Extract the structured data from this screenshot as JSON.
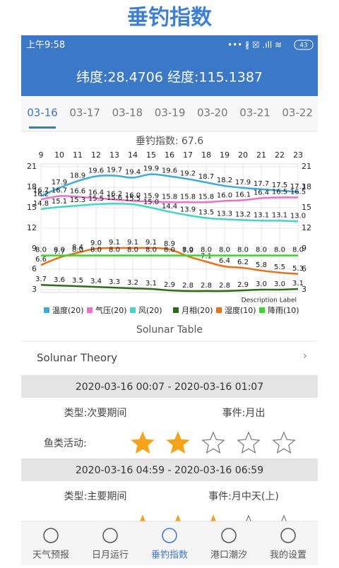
{
  "app_title": "垂钓指数",
  "status_bar": {
    "time": "上午9:58",
    "battery": "43"
  },
  "header": {
    "location": "纬度:28.4706 经度:115.1387"
  },
  "tabs": {
    "items": [
      "03-16",
      "03-17",
      "03-18",
      "03-19",
      "03-20",
      "03-21",
      "03-22"
    ],
    "active": 0
  },
  "chart_data": {
    "type": "line",
    "title": "垂钓指数: 67.6",
    "annotation": "Description Label",
    "x": [
      9,
      10,
      11,
      12,
      13,
      14,
      15,
      16,
      17,
      18,
      19,
      20,
      21,
      22,
      23
    ],
    "xlim": [
      9,
      23
    ],
    "xticks": [
      9,
      10,
      11,
      12,
      13,
      14,
      15,
      16,
      17,
      18,
      19,
      20,
      21,
      22,
      23
    ],
    "ylim": [
      3,
      21
    ],
    "yticks": [
      3,
      6,
      9,
      12,
      15,
      18,
      21
    ],
    "y2lim": [
      3,
      21
    ],
    "y2ticks": [
      3,
      6,
      9,
      12,
      15,
      18,
      21
    ],
    "grid": true,
    "series": [
      {
        "name": "温度(20)",
        "color": "#3fa9dd",
        "values": [
          16.7,
          17.9,
          18.9,
          19.6,
          19.7,
          19.4,
          19.9,
          19.6,
          19.2,
          18.7,
          18.2,
          17.9,
          17.7,
          17.5,
          17.3
        ],
        "value_labels": [
          "16.7",
          "17.9",
          "18.9",
          "19.6",
          "19.7",
          "19.4",
          "19.9",
          "19.6",
          "19.2",
          "18.7",
          "18.2",
          "17.9",
          "17.7",
          "17.5",
          "17.3"
        ]
      },
      {
        "name": "气压(20)",
        "color": "#ee6fc8",
        "values": [
          16.2,
          16.7,
          16.6,
          16.4,
          16.2,
          16,
          15.9,
          15.8,
          15.8,
          15.8,
          16,
          16.1,
          16.4,
          16.5,
          16.5
        ],
        "value_labels": [
          "16.2",
          "16.7",
          "16.6",
          "16.4",
          "16.2",
          "16.0",
          "15.9",
          "15.8",
          "15.8",
          "15.8",
          "16.0",
          "16.1",
          "16.4",
          "16.5",
          "16.5"
        ]
      },
      {
        "name": "风(20)",
        "color": "#44d6c4",
        "values": [
          14.8,
          15.1,
          15.3,
          15.5,
          15.6,
          15.5,
          15,
          14.4,
          13.9,
          13.5,
          13.3,
          13.2,
          13.1,
          13.1,
          13
        ],
        "value_labels": [
          "14.8",
          "15.1",
          "15.3",
          "15.5",
          "15.6",
          "15.5",
          "15.0",
          "14.4",
          "13.9",
          "13.5",
          "13.3",
          "13.2",
          "13.1",
          "13.1",
          "13.0"
        ]
      },
      {
        "name": "月相(20)",
        "color": "#2f6a17",
        "values": [
          3.7,
          3.6,
          3.5,
          3.4,
          3.3,
          3.2,
          3.1,
          2.9,
          2.8,
          2.8,
          2.8,
          2.9,
          3,
          3,
          3.1
        ],
        "value_labels": [
          "3.7",
          "3.6",
          "3.5",
          "3.4",
          "3.3",
          "3.2",
          "3.1",
          "2.9",
          "2.8",
          "2.8",
          "2.8",
          "2.9",
          "3.0",
          "3.0",
          "3.1"
        ]
      },
      {
        "name": "湿度(10)",
        "color": "#ea7018",
        "values": [
          6.6,
          7.7,
          8.4,
          9,
          9.1,
          9.1,
          9.1,
          8.9,
          7.9,
          7.1,
          6.4,
          6.2,
          5.8,
          5.5,
          5.3
        ],
        "value_labels": [
          "6.6",
          "7.7",
          "8.4",
          "9.0",
          "9.1",
          "9.1",
          "9.1",
          "8.9",
          "7.9",
          "7.1",
          "6.4",
          "6.2",
          "5.8",
          "5.5",
          "5.3"
        ]
      },
      {
        "name": "降雨(10)",
        "color": "#3ed42e",
        "values": [
          8,
          8,
          8,
          8,
          8,
          8,
          8,
          8,
          8,
          8,
          8,
          8,
          8,
          8,
          8
        ],
        "value_labels": [
          "8.0",
          "8.0",
          "8.0",
          "8.0",
          "8.0",
          "8.0",
          "8.0",
          "8.0",
          "8.0",
          "8.0",
          "8.0",
          "8.0",
          "8.0",
          "8.0",
          "8.0"
        ]
      }
    ]
  },
  "solunar": {
    "title": "Solunar Table",
    "theory": "Solunar Theory",
    "activity_label": "鱼类活动:",
    "periods": [
      {
        "range": "2020-03-16 00:07 - 2020-03-16 01:07",
        "type": "类型:次要期间",
        "event": "事件:月出",
        "rating": 2,
        "max": 5
      },
      {
        "range": "2020-03-16 04:59 - 2020-03-16 06:59",
        "type": "类型:主要期间",
        "event": "事件:月中天(上)",
        "rating": 3,
        "max": 5
      }
    ]
  },
  "nav": {
    "items": [
      "天气预报",
      "日月运行",
      "垂钓指数",
      "港口潮汐",
      "我的设置"
    ],
    "active": 2
  }
}
